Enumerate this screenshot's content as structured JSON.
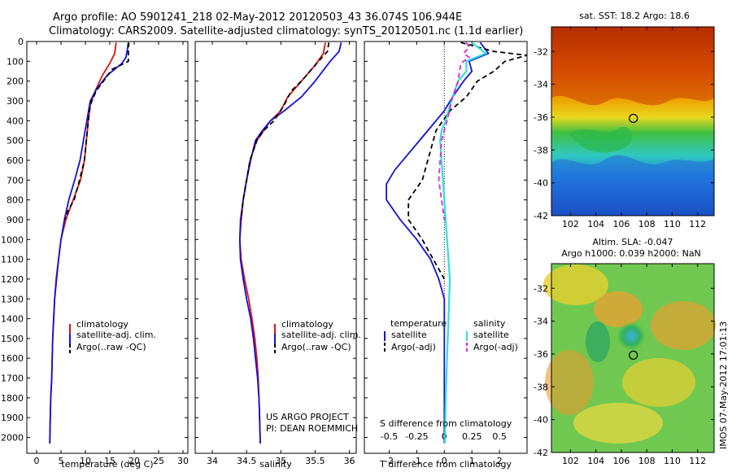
{
  "header": {
    "line1": "Argo profile: AO 5901241_218 02-May-2012 20120503_43 36.074S 106.944E",
    "line2": "Climatology: CARS2009. Satellite-adjusted climatology: synTS_20120501.nc (1.1d earlier)"
  },
  "footer": {
    "project": "US ARGO PROJECT",
    "pi": "PI: DEAN ROEMMICH",
    "stamp": "IMOS 07-May-2012 17:01:13"
  },
  "colors": {
    "climatology": "#dd1111",
    "satellite": "#1111dd",
    "argo": "#000000",
    "sal_satellite": "#33dddd",
    "sal_argo": "#dd22dd"
  },
  "chart_data": [
    {
      "id": "temperature",
      "type": "line",
      "xlabel": "temperature (deg C)",
      "xlim": [
        -2,
        31
      ],
      "xticks": [
        0,
        5,
        10,
        15,
        20,
        25,
        30
      ],
      "ylim": [
        2080,
        0
      ],
      "yticks": [
        0,
        100,
        200,
        300,
        400,
        500,
        600,
        700,
        800,
        900,
        1000,
        1100,
        1200,
        1300,
        1400,
        1500,
        1600,
        1700,
        1800,
        1900,
        2000
      ],
      "legend": [
        "climatology",
        "satellite-adj. clim.",
        "Argo(..raw -QC)"
      ],
      "series": [
        {
          "name": "climatology",
          "style": "red",
          "points": [
            [
              16.3,
              5
            ],
            [
              16.0,
              60
            ],
            [
              15.0,
              110
            ],
            [
              13.5,
              170
            ],
            [
              12.0,
              250
            ],
            [
              11.0,
              320
            ],
            [
              10.6,
              400
            ],
            [
              10.2,
              500
            ],
            [
              9.8,
              600
            ],
            [
              9.0,
              700
            ],
            [
              7.5,
              800
            ],
            [
              6.0,
              900
            ],
            [
              5.0,
              1000
            ],
            [
              4.5,
              1100
            ],
            [
              4.0,
              1200
            ],
            [
              3.7,
              1300
            ],
            [
              3.5,
              1400
            ],
            [
              3.3,
              1500
            ],
            [
              3.2,
              1600
            ],
            [
              3.1,
              1700
            ],
            [
              2.9,
              1800
            ],
            [
              2.8,
              1900
            ],
            [
              2.7,
              2030
            ]
          ]
        },
        {
          "name": "satellite-adj. clim.",
          "style": "blue",
          "points": [
            [
              18.8,
              5
            ],
            [
              18.6,
              40
            ],
            [
              18.3,
              80
            ],
            [
              17.5,
              110
            ],
            [
              14.5,
              170
            ],
            [
              12.3,
              240
            ],
            [
              11.0,
              300
            ],
            [
              10.3,
              400
            ],
            [
              9.6,
              500
            ],
            [
              8.9,
              600
            ],
            [
              7.8,
              700
            ],
            [
              6.6,
              800
            ],
            [
              5.7,
              900
            ],
            [
              5.0,
              1000
            ],
            [
              4.5,
              1100
            ],
            [
              4.1,
              1200
            ],
            [
              3.7,
              1300
            ],
            [
              3.5,
              1400
            ],
            [
              3.3,
              1500
            ],
            [
              3.2,
              1600
            ],
            [
              3.1,
              1700
            ],
            [
              2.9,
              1800
            ],
            [
              2.8,
              1900
            ],
            [
              2.7,
              2030
            ]
          ]
        },
        {
          "name": "Argo(..raw -QC)",
          "style": "black-dash",
          "points": [
            [
              18.9,
              5
            ],
            [
              18.8,
              40
            ],
            [
              18.8,
              100
            ],
            [
              15.5,
              140
            ],
            [
              12.2,
              250
            ],
            [
              11.0,
              320
            ],
            [
              10.6,
              400
            ],
            [
              10.2,
              500
            ],
            [
              9.8,
              600
            ],
            [
              8.8,
              700
            ],
            [
              7.7,
              800
            ],
            [
              6.5,
              850
            ],
            [
              5.8,
              900
            ]
          ]
        }
      ]
    },
    {
      "id": "salinity",
      "type": "line",
      "xlabel": "salinity",
      "xlim": [
        33.75,
        36.1
      ],
      "xticks": [
        34,
        34.5,
        35,
        35.5,
        36
      ],
      "xtick_labels": [
        "34",
        "34.5",
        "35",
        "35.5",
        "36"
      ],
      "ylim": [
        2080,
        0
      ],
      "legend": [
        "climatology",
        "satellite-adj. clim.",
        "Argo(..raw -QC)"
      ],
      "series": [
        {
          "name": "climatology",
          "style": "red",
          "points": [
            [
              35.65,
              5
            ],
            [
              35.62,
              60
            ],
            [
              35.5,
              120
            ],
            [
              35.3,
              200
            ],
            [
              35.1,
              280
            ],
            [
              35.0,
              350
            ],
            [
              34.85,
              400
            ],
            [
              34.75,
              450
            ],
            [
              34.65,
              500
            ],
            [
              34.55,
              600
            ],
            [
              34.5,
              700
            ],
            [
              34.45,
              800
            ],
            [
              34.41,
              900
            ],
            [
              34.4,
              1000
            ],
            [
              34.42,
              1100
            ],
            [
              34.47,
              1200
            ],
            [
              34.53,
              1300
            ],
            [
              34.58,
              1400
            ],
            [
              34.62,
              1500
            ],
            [
              34.65,
              1600
            ],
            [
              34.67,
              1700
            ],
            [
              34.68,
              1800
            ],
            [
              34.69,
              1900
            ],
            [
              34.7,
              2030
            ]
          ]
        },
        {
          "name": "satellite-adj. clim.",
          "style": "blue",
          "points": [
            [
              35.88,
              5
            ],
            [
              35.85,
              50
            ],
            [
              35.72,
              100
            ],
            [
              35.5,
              200
            ],
            [
              35.3,
              280
            ],
            [
              35.05,
              350
            ],
            [
              34.85,
              400
            ],
            [
              34.73,
              450
            ],
            [
              34.63,
              500
            ],
            [
              34.56,
              600
            ],
            [
              34.5,
              700
            ],
            [
              34.45,
              800
            ],
            [
              34.42,
              900
            ],
            [
              34.4,
              1000
            ],
            [
              34.41,
              1100
            ],
            [
              34.45,
              1200
            ],
            [
              34.5,
              1300
            ],
            [
              34.56,
              1400
            ],
            [
              34.6,
              1500
            ],
            [
              34.63,
              1600
            ],
            [
              34.66,
              1700
            ],
            [
              34.68,
              1800
            ],
            [
              34.69,
              1900
            ],
            [
              34.7,
              2030
            ]
          ]
        },
        {
          "name": "Argo(..raw -QC)",
          "style": "black-dash",
          "points": [
            [
              35.7,
              5
            ],
            [
              35.68,
              50
            ],
            [
              35.55,
              100
            ],
            [
              35.3,
              200
            ],
            [
              35.15,
              250
            ],
            [
              35.05,
              320
            ],
            [
              34.9,
              400
            ],
            [
              34.75,
              450
            ],
            [
              34.65,
              500
            ],
            [
              34.55,
              600
            ],
            [
              34.5,
              700
            ],
            [
              34.45,
              800
            ],
            [
              34.42,
              900
            ]
          ]
        }
      ]
    },
    {
      "id": "difference",
      "type": "line",
      "xlabel": "T difference from climatology",
      "xlabel2": "S difference from climatology",
      "xlim": [
        -2.9,
        3.0
      ],
      "xticks": [
        -2,
        -1,
        0,
        1,
        2
      ],
      "sticks": [
        -0.5,
        -0.25,
        0,
        0.25,
        0.5
      ],
      "stick_labels": [
        "-0.5",
        "-0.25",
        "0",
        "0.25",
        "0.5"
      ],
      "ylim": [
        2080,
        0
      ],
      "legend_titles": [
        "temperature",
        "salinity"
      ],
      "legend": [
        "satellite",
        "Argo(-adj)",
        "satellite",
        "Argo(-adj)"
      ],
      "series": [
        {
          "name": "satellite",
          "group": "temperature",
          "style": "blue",
          "points": [
            [
              1.3,
              5
            ],
            [
              1.6,
              60
            ],
            [
              0.9,
              100
            ],
            [
              1.0,
              150
            ],
            [
              0.7,
              200
            ],
            [
              0.3,
              280
            ],
            [
              0,
              350
            ],
            [
              -0.6,
              450
            ],
            [
              -1.2,
              550
            ],
            [
              -1.8,
              650
            ],
            [
              -2.1,
              720
            ],
            [
              -2.1,
              800
            ],
            [
              -1.6,
              900
            ],
            [
              -1.0,
              1000
            ],
            [
              -0.5,
              1100
            ],
            [
              -0.2,
              1200
            ],
            [
              0,
              1300
            ],
            [
              0,
              1400
            ],
            [
              0,
              1600
            ],
            [
              0,
              1800
            ],
            [
              0,
              2030
            ]
          ]
        },
        {
          "name": "Argo(-adj)",
          "group": "temperature",
          "style": "black-dash",
          "points": [
            [
              0.6,
              5
            ],
            [
              1.8,
              50
            ],
            [
              3.0,
              70
            ],
            [
              2.2,
              100
            ],
            [
              1.8,
              150
            ],
            [
              1.2,
              200
            ],
            [
              0.8,
              280
            ],
            [
              0.2,
              350
            ],
            [
              -0.3,
              450
            ],
            [
              -0.6,
              600
            ],
            [
              -0.8,
              700
            ],
            [
              -1.3,
              800
            ],
            [
              -1.3,
              900
            ],
            [
              -0.8,
              1000
            ],
            [
              -0.4,
              1100
            ],
            [
              0,
              1200
            ]
          ]
        },
        {
          "name": "satellite",
          "group": "salinity",
          "style": "cyan",
          "points": [
            [
              1.0,
              5
            ],
            [
              1.5,
              60
            ],
            [
              0.8,
              100
            ],
            [
              0.8,
              150
            ],
            [
              0.5,
              200
            ],
            [
              0.3,
              280
            ],
            [
              0.15,
              350
            ],
            [
              0.05,
              400
            ],
            [
              -0.1,
              450
            ],
            [
              -0.15,
              500
            ],
            [
              -0.1,
              600
            ],
            [
              -0.05,
              700
            ],
            [
              0,
              800
            ],
            [
              0.05,
              900
            ],
            [
              0.1,
              1000
            ],
            [
              0.15,
              1100
            ],
            [
              0.2,
              1200
            ],
            [
              0.15,
              1400
            ],
            [
              0.1,
              1600
            ],
            [
              0.05,
              1800
            ],
            [
              0.02,
              2030
            ]
          ]
        },
        {
          "name": "Argo(-adj)",
          "group": "salinity",
          "style": "magenta-dash",
          "points": [
            [
              0.8,
              5
            ],
            [
              0.9,
              30
            ],
            [
              0.7,
              60
            ],
            [
              0.9,
              80
            ],
            [
              0.6,
              110
            ],
            [
              0.5,
              200
            ],
            [
              0.3,
              280
            ],
            [
              0.1,
              400
            ],
            [
              -0.1,
              500
            ],
            [
              -0.15,
              600
            ],
            [
              -0.2,
              700
            ],
            [
              -0.1,
              800
            ],
            [
              -0.05,
              850
            ],
            [
              0,
              900
            ]
          ]
        }
      ]
    },
    {
      "id": "sst_map",
      "type": "heatmap",
      "title": "sat. SST: 18.2 Argo: 18.6",
      "xlim": [
        100.5,
        113.3
      ],
      "ylim": [
        -42,
        -30.5
      ],
      "xticks": [
        102,
        104,
        106,
        108,
        110,
        112
      ],
      "yticks": [
        -32,
        -34,
        -36,
        -38,
        -40,
        -42
      ],
      "marker": [
        106.944,
        -36.074
      ]
    },
    {
      "id": "sla_map",
      "type": "heatmap",
      "title": "Altim. SLA: -0.047",
      "subtitle": "Argo h1000: 0.039 h2000: NaN",
      "xlim": [
        100.5,
        113.3
      ],
      "ylim": [
        -42,
        -30.5
      ],
      "xticks": [
        102,
        104,
        106,
        108,
        110,
        112
      ],
      "yticks": [
        -32,
        -34,
        -36,
        -38,
        -40,
        -42
      ],
      "marker": [
        106.944,
        -36.074
      ]
    }
  ]
}
